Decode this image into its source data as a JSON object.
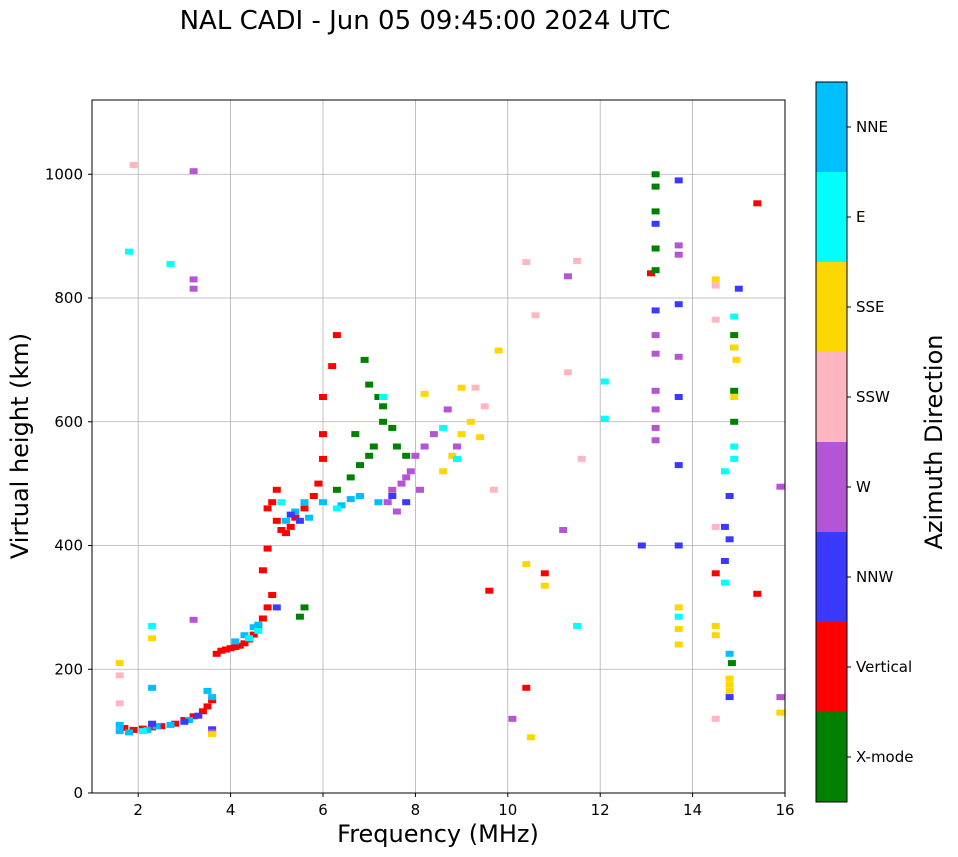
{
  "chart_data": {
    "type": "scatter",
    "title": "NAL CADI - Jun 05 09:45:00 2024 UTC",
    "xlabel": "Frequency (MHz)",
    "ylabel": "Virtual height (km)",
    "xlim": [
      1,
      16
    ],
    "ylim": [
      0,
      1120
    ],
    "x_ticks": [
      2,
      4,
      6,
      8,
      10,
      12,
      14,
      16
    ],
    "y_ticks": [
      0,
      200,
      400,
      600,
      800,
      1000
    ],
    "grid": true,
    "colorbar": {
      "label": "Azimuth Direction",
      "categories": [
        {
          "name": "X-mode",
          "color": "#008000"
        },
        {
          "name": "Vertical",
          "color": "#ff0000"
        },
        {
          "name": "NNW",
          "color": "#3a3aff"
        },
        {
          "name": "W",
          "color": "#b455d6"
        },
        {
          "name": "SSW",
          "color": "#ffb6c1"
        },
        {
          "name": "SSE",
          "color": "#ffd700"
        },
        {
          "name": "E",
          "color": "#00ffff"
        },
        {
          "name": "NNE",
          "color": "#00bfff"
        }
      ]
    },
    "series": [
      {
        "name": "Vertical",
        "points": [
          [
            1.7,
            105
          ],
          [
            1.9,
            102
          ],
          [
            2.1,
            104
          ],
          [
            2.3,
            106
          ],
          [
            2.5,
            108
          ],
          [
            2.8,
            112
          ],
          [
            3.0,
            118
          ],
          [
            3.2,
            124
          ],
          [
            3.4,
            132
          ],
          [
            3.5,
            140
          ],
          [
            3.6,
            150
          ],
          [
            3.7,
            225
          ],
          [
            3.8,
            230
          ],
          [
            3.9,
            232
          ],
          [
            4.0,
            234
          ],
          [
            4.1,
            236
          ],
          [
            4.2,
            238
          ],
          [
            4.3,
            242
          ],
          [
            4.4,
            248
          ],
          [
            4.5,
            256
          ],
          [
            4.6,
            268
          ],
          [
            4.7,
            282
          ],
          [
            4.8,
            300
          ],
          [
            4.9,
            320
          ],
          [
            4.7,
            360
          ],
          [
            4.8,
            395
          ],
          [
            5.0,
            440
          ],
          [
            5.1,
            425
          ],
          [
            5.2,
            420
          ],
          [
            5.3,
            430
          ],
          [
            5.4,
            445
          ],
          [
            5.6,
            460
          ],
          [
            5.8,
            480
          ],
          [
            5.9,
            500
          ],
          [
            6.0,
            540
          ],
          [
            6.0,
            580
          ],
          [
            6.0,
            640
          ],
          [
            6.2,
            690
          ],
          [
            6.3,
            740
          ],
          [
            4.9,
            470
          ],
          [
            5.0,
            490
          ],
          [
            4.8,
            460
          ],
          [
            9.6,
            327
          ],
          [
            10.4,
            170
          ],
          [
            10.8,
            355
          ],
          [
            14.5,
            355
          ],
          [
            15.4,
            322
          ],
          [
            15.4,
            953
          ],
          [
            13.1,
            840
          ]
        ]
      },
      {
        "name": "NNE",
        "points": [
          [
            1.6,
            100
          ],
          [
            1.8,
            98
          ],
          [
            2.2,
            102
          ],
          [
            2.4,
            108
          ],
          [
            2.7,
            110
          ],
          [
            3.1,
            118
          ],
          [
            3.6,
            155
          ],
          [
            4.1,
            245
          ],
          [
            4.3,
            255
          ],
          [
            4.5,
            268
          ],
          [
            4.6,
            272
          ],
          [
            5.2,
            440
          ],
          [
            5.4,
            455
          ],
          [
            5.6,
            470
          ],
          [
            5.7,
            445
          ],
          [
            6.0,
            470
          ],
          [
            6.4,
            465
          ],
          [
            6.6,
            475
          ],
          [
            6.8,
            480
          ],
          [
            7.2,
            470
          ],
          [
            3.5,
            165
          ],
          [
            1.6,
            110
          ],
          [
            2.3,
            170
          ],
          [
            14.8,
            225
          ]
        ]
      },
      {
        "name": "X-mode",
        "points": [
          [
            5.5,
            285
          ],
          [
            5.6,
            300
          ],
          [
            6.3,
            490
          ],
          [
            6.6,
            510
          ],
          [
            6.8,
            530
          ],
          [
            7.0,
            545
          ],
          [
            7.1,
            560
          ],
          [
            7.3,
            600
          ],
          [
            7.5,
            590
          ],
          [
            7.6,
            560
          ],
          [
            7.8,
            545
          ],
          [
            6.9,
            700
          ],
          [
            7.0,
            660
          ],
          [
            7.2,
            640
          ],
          [
            7.3,
            625
          ],
          [
            6.7,
            580
          ],
          [
            13.2,
            1000
          ],
          [
            13.2,
            980
          ],
          [
            13.2,
            940
          ],
          [
            13.2,
            880
          ],
          [
            13.2,
            845
          ],
          [
            14.85,
            210
          ],
          [
            14.9,
            740
          ],
          [
            14.9,
            720
          ],
          [
            14.9,
            650
          ],
          [
            14.9,
            600
          ]
        ]
      },
      {
        "name": "NNW",
        "points": [
          [
            2.3,
            112
          ],
          [
            3.0,
            115
          ],
          [
            3.3,
            125
          ],
          [
            5.0,
            300
          ],
          [
            5.3,
            450
          ],
          [
            5.5,
            440
          ],
          [
            7.5,
            480
          ],
          [
            7.8,
            470
          ],
          [
            13.2,
            920
          ],
          [
            13.2,
            780
          ],
          [
            13.7,
            790
          ],
          [
            13.7,
            990
          ],
          [
            13.7,
            640
          ],
          [
            13.7,
            530
          ],
          [
            13.7,
            400
          ],
          [
            12.9,
            400
          ],
          [
            14.7,
            430
          ],
          [
            14.7,
            375
          ],
          [
            14.8,
            155
          ],
          [
            14.8,
            410
          ],
          [
            15.0,
            815
          ],
          [
            14.8,
            480
          ],
          [
            3.6,
            103
          ]
        ]
      },
      {
        "name": "W",
        "points": [
          [
            3.2,
            1005
          ],
          [
            3.2,
            830
          ],
          [
            3.2,
            815
          ],
          [
            3.2,
            280
          ],
          [
            7.5,
            490
          ],
          [
            7.7,
            500
          ],
          [
            7.9,
            520
          ],
          [
            8.0,
            545
          ],
          [
            8.2,
            560
          ],
          [
            8.4,
            580
          ],
          [
            8.7,
            620
          ],
          [
            8.9,
            560
          ],
          [
            7.4,
            470
          ],
          [
            7.6,
            455
          ],
          [
            7.8,
            510
          ],
          [
            8.1,
            490
          ],
          [
            13.2,
            740
          ],
          [
            13.2,
            710
          ],
          [
            13.2,
            650
          ],
          [
            13.2,
            620
          ],
          [
            13.2,
            590
          ],
          [
            13.2,
            570
          ],
          [
            11.3,
            835
          ],
          [
            13.7,
            885
          ],
          [
            13.7,
            870
          ],
          [
            13.7,
            705
          ],
          [
            11.2,
            425
          ],
          [
            15.9,
            495
          ],
          [
            15.9,
            155
          ],
          [
            10.1,
            120
          ],
          [
            3.6,
            98
          ]
        ]
      },
      {
        "name": "SSW",
        "points": [
          [
            1.6,
            190
          ],
          [
            1.6,
            145
          ],
          [
            1.9,
            1015
          ],
          [
            10.4,
            858
          ],
          [
            10.6,
            772
          ],
          [
            11.3,
            680
          ],
          [
            11.6,
            540
          ],
          [
            11.5,
            860
          ],
          [
            14.5,
            820
          ],
          [
            14.5,
            765
          ],
          [
            14.5,
            430
          ],
          [
            14.5,
            120
          ],
          [
            9.7,
            490
          ],
          [
            9.3,
            655
          ],
          [
            9.5,
            625
          ]
        ]
      },
      {
        "name": "SSE",
        "points": [
          [
            1.6,
            210
          ],
          [
            2.3,
            250
          ],
          [
            3.6,
            95
          ],
          [
            8.2,
            645
          ],
          [
            8.6,
            520
          ],
          [
            8.8,
            545
          ],
          [
            9.0,
            580
          ],
          [
            9.2,
            600
          ],
          [
            9.4,
            575
          ],
          [
            9.0,
            655
          ],
          [
            10.4,
            370
          ],
          [
            10.8,
            335
          ],
          [
            10.5,
            90
          ],
          [
            13.7,
            300
          ],
          [
            13.7,
            265
          ],
          [
            13.7,
            240
          ],
          [
            14.5,
            830
          ],
          [
            14.5,
            270
          ],
          [
            14.5,
            255
          ],
          [
            14.8,
            185
          ],
          [
            14.8,
            175
          ],
          [
            14.8,
            165
          ],
          [
            14.9,
            720
          ],
          [
            14.95,
            700
          ],
          [
            14.9,
            640
          ],
          [
            9.8,
            715
          ],
          [
            15.9,
            130
          ]
        ]
      },
      {
        "name": "E",
        "points": [
          [
            1.8,
            875
          ],
          [
            2.7,
            855
          ],
          [
            2.3,
            270
          ],
          [
            2.1,
            100
          ],
          [
            4.4,
            250
          ],
          [
            4.6,
            262
          ],
          [
            5.1,
            470
          ],
          [
            6.3,
            460
          ],
          [
            7.3,
            640
          ],
          [
            8.6,
            590
          ],
          [
            8.9,
            540
          ],
          [
            12.1,
            665
          ],
          [
            12.1,
            605
          ],
          [
            13.7,
            285
          ],
          [
            14.7,
            520
          ],
          [
            14.7,
            340
          ],
          [
            14.9,
            770
          ],
          [
            14.9,
            560
          ],
          [
            14.9,
            540
          ],
          [
            11.5,
            270
          ]
        ]
      }
    ]
  }
}
